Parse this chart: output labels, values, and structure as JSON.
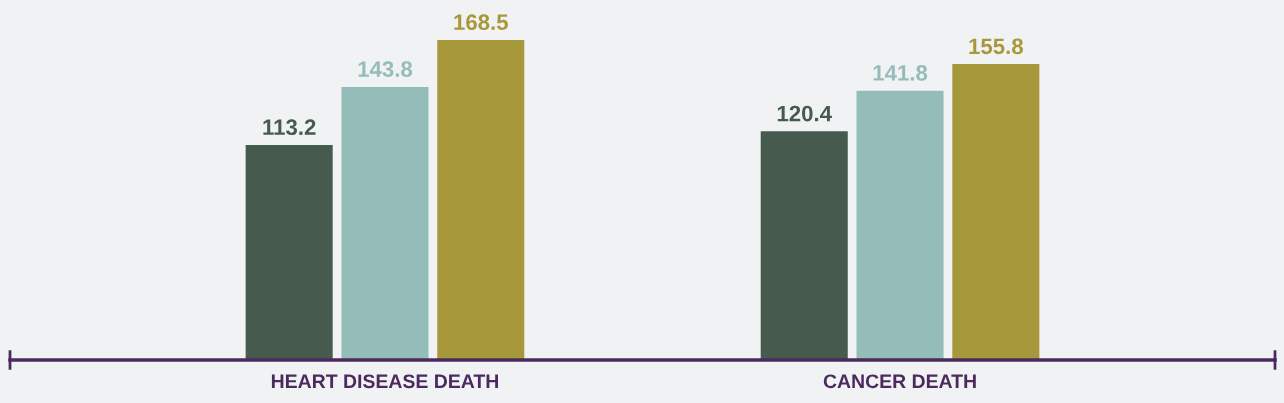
{
  "chart_data": {
    "type": "bar",
    "categories": [
      "HEART DISEASE DEATH",
      "CANCER DEATH"
    ],
    "series": [
      {
        "color": "#465a4e",
        "values": [
          113.2,
          120.4
        ]
      },
      {
        "color": "#94bcb9",
        "values": [
          143.8,
          141.8
        ]
      },
      {
        "color": "#a7993b",
        "values": [
          168.5,
          155.8
        ]
      }
    ],
    "data_labels": true,
    "grid": false,
    "legend": false
  }
}
